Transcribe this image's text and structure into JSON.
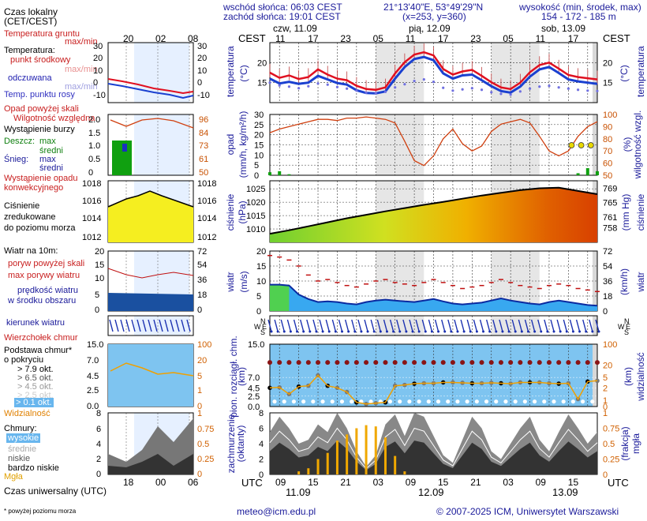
{
  "header": {
    "sunrise": "wschód słońca: 06:03 CEST",
    "sunset": "zachód słońca: 19:01 CEST",
    "coords": "21°13'40\"E, 53°49'29\"N",
    "grid": "(x=253, y=360)",
    "altitude_label": "wysokość (min, środek, max)",
    "altitude_values": "154 - 172 - 185 m"
  },
  "left": {
    "local_time_title": "Czas lokalny",
    "local_time_sub": "(CET/CEST)",
    "soil_temp": "Temperatura gruntu",
    "soil_maxmin": "max/min",
    "temperature": "Temperatura:",
    "mid_point": "punkt środkowy",
    "maxmin": "max/min",
    "perceived": "odczuwana",
    "maxmin2": "max/min",
    "dew_point": "Temp. punktu rosy",
    "precip_above": "Opad powyżej skali",
    "humidity": "Wilgotność względna",
    "storm": "Wystąpienie burzy",
    "rain": "Deszcz:",
    "max": "max",
    "mean": "średni",
    "snow": "Śnieg:",
    "convective": "Wystąpienie opadu",
    "convective2": "konwekcyjnego",
    "pressure1": "Ciśnienie",
    "pressure2": "zredukowane",
    "pressure3": "do poziomu morza",
    "wind_at": "Wiatr na 10m:",
    "gust_above": "poryw powyżej skali",
    "max_gust": "max porywy wiatru",
    "wind_speed1": "prędkość wiatru",
    "wind_speed2": "w środku obszaru",
    "wind_dir": "kierunek wiatru",
    "cloud_top": "Wierzchołek chmur",
    "cloud_base1": "Podstawa chmur*",
    "cloud_base2": "o pokryciu",
    "okt79": "> 7.9 okt.",
    "okt65": "> 6.5 okt.",
    "okt45": "> 4.5 okt.",
    "okt25": "> 2.5 okt.",
    "okt01": "> 0.1 okt.",
    "visibility": "Widzialność",
    "clouds": "Chmury:",
    "high": "wysokie",
    "medium": "średnie",
    "low": "niskie",
    "very_low": "bardzo niskie",
    "fog": "Mgła",
    "utc": "Czas uniwersalny (UTC)",
    "footnote": "* powyżej poziomu morza"
  },
  "mini_ticks_top": [
    "20",
    "02",
    "08"
  ],
  "mini_ticks_bottom": [
    "18",
    "00",
    "06"
  ],
  "main_days_top": [
    "czw, 11.09",
    "pią, 12.09",
    "sob, 13.09"
  ],
  "main_hours_top": [
    "11",
    "17",
    "23",
    "05",
    "11",
    "17",
    "23",
    "05",
    "11",
    "17"
  ],
  "main_hours_bottom": [
    "09",
    "15",
    "21",
    "03",
    "09",
    "15",
    "21",
    "03",
    "09",
    "15"
  ],
  "main_days_bottom": [
    "11.09",
    "12.09",
    "13.09"
  ],
  "tz_label": "CEST",
  "utc_label": "UTC",
  "axis_labels": {
    "temp": "temperatura",
    "temp_unit": "(°C)",
    "precip": "opad",
    "precip_unit": "(mm/h, kg/m²/h)",
    "humidity": "wilgotność wzgl.",
    "humidity_unit": "(%)",
    "pressure": "ciśnienie",
    "pressure_unit": "(hPa)",
    "pressure_unit2": "(mm Hg)",
    "wind": "wiatr",
    "wind_unit": "(m/s)",
    "wind_unit2": "(km/h)",
    "cloud_height": "pion. rozciągł. chm.",
    "cloud_height_unit": "(km)",
    "visibility": "widzialność",
    "visibility_unit": "(km)",
    "cover": "zachmurzenie",
    "cover_unit": "(oktanty)",
    "fog": "mgła",
    "fog_unit": "(frakcja)"
  },
  "footer": {
    "email": "meteo@icm.edu.pl",
    "copyright": "© 2007-2025 ICM, Uniwersytet Warszawski"
  },
  "chart_data": [
    {
      "type": "line",
      "title": "temperatura",
      "ylabel": "(°C)",
      "ylim": [
        10,
        25
      ],
      "x_hours": [
        0,
        6,
        12,
        18,
        24,
        30,
        36,
        42,
        48,
        54,
        60,
        66,
        72,
        78,
        84,
        90,
        96,
        102,
        108,
        114,
        120,
        126,
        132,
        138,
        144,
        150,
        156,
        162,
        168,
        174,
        180,
        186,
        192,
        198,
        204
      ],
      "series": [
        {
          "values": [
            17.5,
            16.2,
            16.8,
            15.9,
            16.4,
            18.3,
            17.0,
            16.0,
            15.6,
            14.2,
            13.4,
            13.2,
            13.8,
            17.3,
            20.1,
            22.0,
            22.6,
            21.8,
            18.4,
            17.0,
            17.8,
            18.2,
            16.7,
            15.1,
            13.8,
            13.4,
            15.0,
            17.6,
            19.4,
            20.0,
            18.5,
            16.9,
            16.4,
            16.1,
            15.8
          ]
        },
        {
          "values": [
            16.0,
            14.8,
            15.2,
            14.7,
            15.0,
            16.7,
            15.8,
            14.9,
            14.5,
            13.1,
            12.4,
            12.3,
            12.8,
            16.0,
            18.9,
            20.9,
            21.4,
            20.6,
            17.3,
            16.0,
            16.8,
            17.0,
            15.6,
            14.1,
            12.9,
            12.5,
            14.0,
            16.5,
            18.3,
            18.9,
            17.4,
            15.8,
            15.3,
            15.0,
            14.7
          ]
        },
        {
          "values": [
            15.0,
            14.3,
            14.0,
            13.6,
            14.1,
            14.8,
            14.5,
            13.9,
            13.5,
            13.0,
            12.5,
            12.4,
            12.7,
            13.8,
            14.6,
            15.4,
            15.8,
            15.2,
            13.7,
            13.0,
            13.3,
            13.6,
            13.2,
            12.6,
            12.2,
            12.0,
            12.8,
            13.5,
            14.0,
            14.2,
            13.8,
            13.5,
            13.2,
            13.0,
            12.9
          ]
        }
      ],
      "ylim_note": "right axis ticks 15, 20"
    },
    {
      "type": "bar",
      "title": "opad",
      "ylim": [
        0,
        30
      ],
      "y2lim": [
        50,
        100
      ],
      "x_hours": [
        0,
        6,
        12,
        18,
        24,
        30,
        36,
        42,
        48,
        54,
        60,
        66,
        72,
        78,
        84,
        90,
        96,
        102,
        108,
        114,
        120,
        126,
        132,
        138,
        144,
        150,
        156,
        162,
        168,
        174,
        180,
        186,
        192,
        198,
        204
      ],
      "series": [
        {
          "values": [
            1.5,
            2.0,
            0.5,
            0,
            0,
            0,
            0,
            0,
            0,
            0,
            0,
            0,
            0,
            0,
            0,
            0,
            0,
            0,
            0,
            0,
            0,
            0,
            0,
            0,
            0,
            0,
            0,
            0,
            0,
            0,
            0,
            0,
            1.0,
            3.5,
            2.0
          ]
        },
        {
          "values": [
            85,
            88,
            90,
            92,
            94,
            96,
            96,
            95,
            97,
            97,
            98,
            97,
            96,
            93,
            78,
            62,
            58,
            66,
            80,
            88,
            76,
            70,
            74,
            86,
            92,
            94,
            96,
            93,
            82,
            70,
            66,
            70,
            82,
            90,
            94
          ]
        }
      ]
    },
    {
      "type": "area",
      "title": "ciśnienie",
      "ylim": [
        1005,
        1028
      ],
      "x_hours": [
        0,
        12,
        24,
        36,
        48,
        60,
        72,
        84,
        96,
        108,
        120,
        132,
        144,
        156,
        168,
        180,
        192,
        204
      ],
      "series": [
        {
          "values": [
            1008.2,
            1009.5,
            1011.0,
            1012.5,
            1014.0,
            1015.3,
            1016.6,
            1017.8,
            1019.0,
            1020.1,
            1021.3,
            1022.5,
            1023.5,
            1024.5,
            1025.2,
            1025.4,
            1024.2,
            1023.0
          ]
        }
      ]
    },
    {
      "type": "area",
      "title": "wiatr",
      "ylim": [
        0,
        20
      ],
      "x_hours": [
        0,
        6,
        12,
        18,
        24,
        30,
        36,
        42,
        48,
        54,
        60,
        66,
        72,
        78,
        84,
        90,
        96,
        102,
        108,
        114,
        120,
        126,
        132,
        138,
        144,
        150,
        156,
        162,
        168,
        174,
        180,
        186,
        192,
        198,
        204
      ],
      "series": [
        {
          "values": [
            8.8,
            8.8,
            8.5,
            5.5,
            4.0,
            3.0,
            3.2,
            3.0,
            2.5,
            2.2,
            3.0,
            3.5,
            3.8,
            3.5,
            3.2,
            3.0,
            3.5,
            4.0,
            3.2,
            2.5,
            2.2,
            2.5,
            2.8,
            3.5,
            4.2,
            3.5,
            3.0,
            2.5,
            2.2,
            3.0,
            3.5,
            3.0,
            2.5,
            2.0,
            1.8
          ]
        },
        {
          "values": [
            18.5,
            18.0,
            17.0,
            15.0,
            12.0,
            10.0,
            10.5,
            9.5,
            8.5,
            8.0,
            9.0,
            10.0,
            10.5,
            9.5,
            9.0,
            8.5,
            9.5,
            10.5,
            9.5,
            8.5,
            7.5,
            8.0,
            8.5,
            9.5,
            10.5,
            9.5,
            8.5,
            8.0,
            7.5,
            8.5,
            9.0,
            8.5,
            7.5,
            7.0,
            6.5
          ]
        }
      ]
    },
    {
      "type": "scatter",
      "title": "widzialność",
      "ylim": [
        0,
        15
      ],
      "x_hours": [
        0,
        6,
        12,
        18,
        24,
        30,
        36,
        42,
        48,
        54,
        60,
        66,
        72,
        78,
        84,
        90,
        96,
        102,
        108,
        114,
        120,
        126,
        132,
        138,
        144,
        150,
        156,
        162,
        168,
        174,
        180,
        186,
        192,
        198,
        204
      ],
      "series": [
        {
          "values": [
            4.5,
            4.6,
            3.0,
            4.8,
            5.0,
            7.5,
            5.0,
            4.5,
            3.5,
            1.0,
            0.6,
            0.8,
            1.0,
            5.0,
            5.2,
            5.5,
            5.6,
            5.6,
            5.8,
            5.8,
            5.7,
            5.6,
            5.6,
            5.7,
            5.6,
            5.5,
            5.8,
            5.8,
            5.8,
            5.6,
            5.5,
            5.6,
            1.8,
            6.0,
            6.2
          ]
        }
      ]
    },
    {
      "type": "area",
      "title": "zachmurzenie",
      "ylim": [
        0,
        8
      ],
      "x_hours": [
        0,
        6,
        12,
        18,
        24,
        30,
        36,
        42,
        48,
        54,
        60,
        66,
        72,
        78,
        84,
        90,
        96,
        102,
        108,
        114,
        120,
        126,
        132,
        138,
        144,
        150,
        156,
        162,
        168,
        174,
        180,
        186,
        192,
        198,
        204
      ],
      "series": [
        {
          "values": [
            5.5,
            7.5,
            6.0,
            4.0,
            4.5,
            6.5,
            5.5,
            8.0,
            6.0,
            3.0,
            1.0,
            2.5,
            6.5,
            7.8,
            5.0,
            8.0,
            7.5,
            5.0,
            2.5,
            1.5,
            4.5,
            7.5,
            6.0,
            3.0,
            2.0,
            4.0,
            6.0,
            7.5,
            4.5,
            3.0,
            5.5,
            7.8,
            6.0,
            4.0,
            5.5
          ]
        },
        {
          "values": [
            0,
            0,
            0,
            0.05,
            0.1,
            0.25,
            0.35,
            0.55,
            0.65,
            0.75,
            0.8,
            0.78,
            0.6,
            0.3,
            0.05,
            0,
            0,
            0,
            0,
            0,
            0,
            0,
            0,
            0,
            0,
            0,
            0,
            0,
            0,
            0,
            0,
            0,
            0,
            0,
            0
          ]
        }
      ]
    }
  ]
}
